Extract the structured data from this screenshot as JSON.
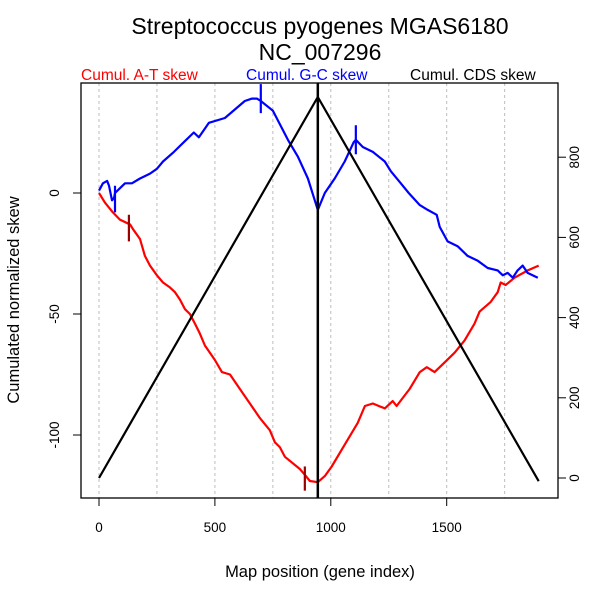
{
  "chart_data": {
    "type": "line",
    "title": "Streptococcus pyogenes MGAS6180",
    "subtitle": "NC_007296",
    "xlabel": "Map position (gene index)",
    "ylabel": "Cumulated normalized skew",
    "xlim": [
      0,
      1900
    ],
    "ylim_left": [
      -125,
      45
    ],
    "ylim_right": [
      -30,
      950
    ],
    "x_ticks": [
      0,
      500,
      1000,
      1500
    ],
    "x_tick_labels": [
      "0",
      "500",
      "1000",
      "1500"
    ],
    "left_ticks": [
      0,
      -50,
      -100
    ],
    "left_tick_labels": [
      "0",
      "-50",
      "-100"
    ],
    "right_ticks": [
      0,
      200,
      400,
      600,
      800
    ],
    "right_tick_labels": [
      "0",
      "200",
      "400",
      "600",
      "800"
    ],
    "x_gridlines": [
      0,
      250,
      500,
      750,
      1000,
      1250,
      1500,
      1750
    ],
    "grid": "vertical dotted",
    "legend_placement": "top",
    "vertical_marker_x": 944,
    "series": [
      {
        "name": "Cumul. A-T skew",
        "color": "#ff0000",
        "axis": "left",
        "x": [
          0,
          26,
          60,
          90,
          134,
          147,
          177,
          198,
          220,
          250,
          276,
          306,
          328,
          349,
          371,
          392,
          414,
          435,
          457,
          500,
          530,
          565,
          608,
          651,
          694,
          737,
          759,
          780,
          802,
          866,
          884,
          910,
          944,
          974,
          1004,
          1060,
          1116,
          1147,
          1181,
          1233,
          1267,
          1284,
          1340,
          1384,
          1414,
          1448,
          1491,
          1534,
          1577,
          1620,
          1642,
          1690,
          1720,
          1733,
          1754,
          1793,
          1850,
          1897
        ],
        "y": [
          0,
          -4,
          -8,
          -11,
          -13,
          -15,
          -19,
          -26,
          -30,
          -34,
          -37,
          -39,
          -41,
          -44,
          -48,
          -50,
          -54,
          -58,
          -63,
          -69,
          -74,
          -75,
          -81,
          -87,
          -93,
          -98,
          -103,
          -105,
          -109,
          -114,
          -116,
          -119,
          -119.5,
          -117,
          -113,
          -104,
          -95,
          -88,
          -87,
          -89,
          -86,
          -88,
          -81,
          -74,
          -72,
          -74,
          -70,
          -66,
          -61,
          -54,
          -49,
          -45,
          -41,
          -37,
          -38,
          -35,
          -32,
          -30
        ]
      },
      {
        "name": "Cumul. G-C skew",
        "color": "#0000ff",
        "axis": "left",
        "x": [
          0,
          17,
          35,
          43,
          56,
          65,
          69,
          112,
          142,
          177,
          198,
          220,
          250,
          276,
          323,
          366,
          409,
          431,
          474,
          543,
          629,
          660,
          681,
          698,
          750,
          815,
          858,
          901,
          944,
          974,
          1017,
          1060,
          1099,
          1108,
          1138,
          1181,
          1233,
          1259,
          1302,
          1336,
          1384,
          1418,
          1457,
          1470,
          1504,
          1547,
          1590,
          1634,
          1677,
          1720,
          1742,
          1763,
          1785,
          1806,
          1828,
          1849,
          1893
        ],
        "y": [
          1,
          4,
          5,
          3,
          -3,
          -2,
          0,
          4,
          4,
          6,
          7,
          8,
          10,
          13,
          17,
          21,
          25,
          23,
          29,
          31,
          38,
          39,
          39,
          38,
          34,
          22,
          15,
          6,
          -7,
          0,
          6,
          13,
          21,
          22,
          19,
          17,
          13,
          9,
          4,
          0,
          -5,
          -7,
          -9,
          -14,
          -20,
          -22,
          -26,
          -28,
          -31,
          -32,
          -34,
          -33,
          -35,
          -32,
          -30,
          -33,
          -35
        ]
      },
      {
        "name": "Cumul. CDS skew",
        "color": "#000000",
        "axis": "right",
        "x": [
          0,
          944,
          1897
        ],
        "y": [
          0,
          950,
          -8
        ]
      }
    ],
    "markers": [
      {
        "series": "Cumul. A-T skew",
        "color": "#990000",
        "x": 129,
        "y_range": [
          -9,
          -20
        ]
      },
      {
        "series": "Cumul. A-T skew",
        "color": "#990000",
        "x": 888,
        "y_range": [
          -113,
          -123
        ]
      },
      {
        "series": "Cumul. G-C skew",
        "color": "#0000ff",
        "x": 69,
        "y_range": [
          3,
          -8
        ]
      },
      {
        "series": "Cumul. G-C skew",
        "color": "#0000ff",
        "x": 698,
        "y_range": [
          45,
          33
        ]
      },
      {
        "series": "Cumul. G-C skew",
        "color": "#0000ff",
        "x": 1108,
        "y_range": [
          28,
          16
        ]
      }
    ]
  }
}
